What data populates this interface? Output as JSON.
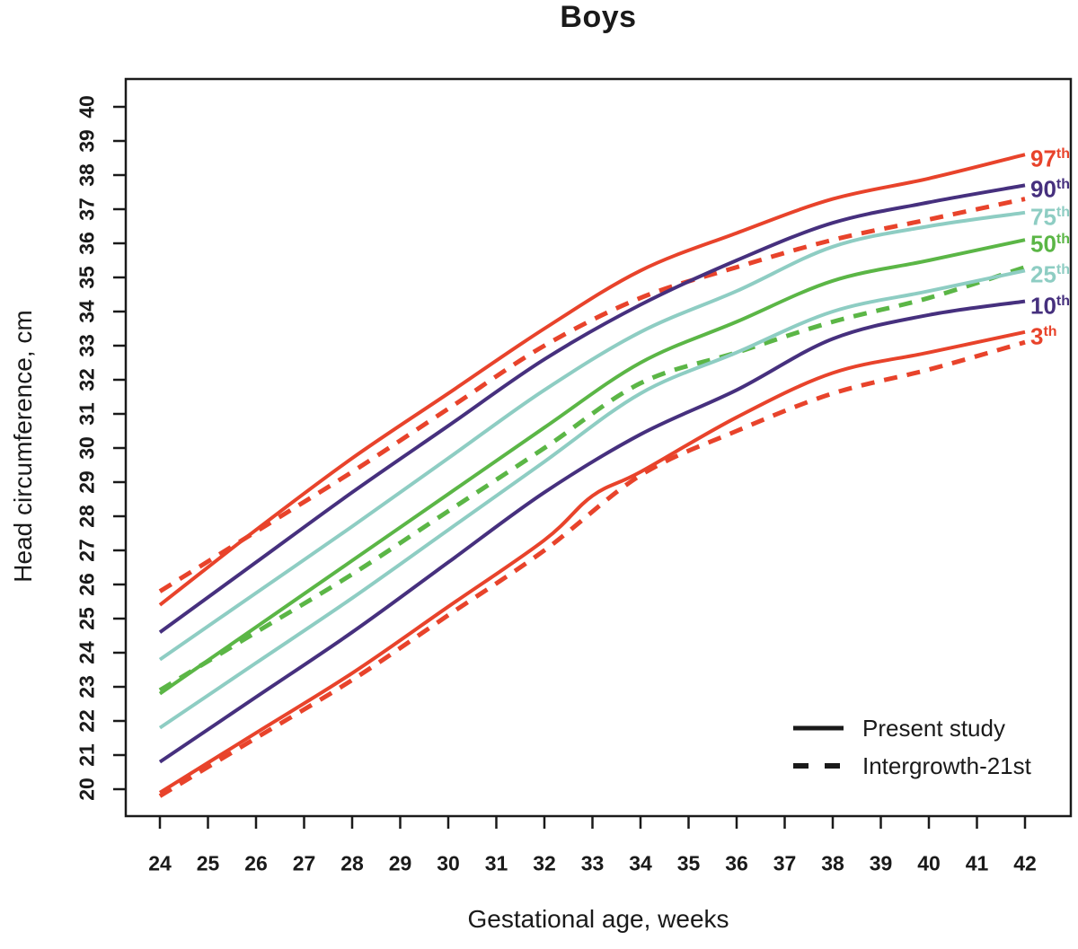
{
  "figure": {
    "title": "Boys"
  },
  "chart_data": {
    "type": "line",
    "title": "Boys",
    "xlabel": "Gestational age, weeks",
    "ylabel": "Head circumference, cm",
    "x_ticks": [
      24,
      25,
      26,
      27,
      28,
      29,
      30,
      31,
      32,
      33,
      34,
      35,
      36,
      37,
      38,
      39,
      40,
      41,
      42
    ],
    "y_ticks": [
      20,
      21,
      22,
      23,
      24,
      25,
      26,
      27,
      28,
      29,
      30,
      31,
      32,
      33,
      34,
      35,
      36,
      37,
      38,
      39,
      40
    ],
    "xlim": [
      23.3,
      43.0
    ],
    "ylim": [
      19.2,
      40.8
    ],
    "grid": false,
    "legend_position": "bottom-right-inside",
    "colors": {
      "red": "#e8432b",
      "purple": "#46307e",
      "teal": "#8ecdc3",
      "green": "#5bb646",
      "axis": "#1a1a1a"
    },
    "x": [
      24,
      26,
      28,
      30,
      32,
      34,
      36,
      38,
      40,
      42
    ],
    "series": [
      {
        "id": "97th-present",
        "percentile": "97th",
        "source": "Present study",
        "style": "solid",
        "color": "#e8432b",
        "values": [
          25.4,
          27.6,
          29.7,
          31.6,
          33.5,
          35.2,
          36.3,
          37.3,
          37.9,
          38.6
        ]
      },
      {
        "id": "97th-intergrowth",
        "percentile": "97th",
        "source": "Intergrowth-21st",
        "style": "dashed",
        "color": "#e8432b",
        "values": [
          25.8,
          27.55,
          29.3,
          31.15,
          33.0,
          34.4,
          35.3,
          36.1,
          36.7,
          37.3
        ]
      },
      {
        "id": "90th-present",
        "percentile": "90th",
        "source": "Present study",
        "style": "solid",
        "color": "#46307e",
        "values": [
          24.6,
          26.65,
          28.7,
          30.65,
          32.6,
          34.2,
          35.5,
          36.6,
          37.2,
          37.7
        ]
      },
      {
        "id": "75th-present",
        "percentile": "75th",
        "source": "Present study",
        "style": "solid",
        "color": "#8ecdc3",
        "values": [
          23.8,
          25.75,
          27.7,
          29.7,
          31.7,
          33.4,
          34.6,
          35.9,
          36.5,
          36.9
        ]
      },
      {
        "id": "50th-present",
        "percentile": "50th",
        "source": "Present study",
        "style": "solid",
        "color": "#5bb646",
        "values": [
          22.8,
          24.75,
          26.7,
          28.65,
          30.6,
          32.5,
          33.7,
          34.9,
          35.5,
          36.1
        ]
      },
      {
        "id": "50th-intergrowth",
        "percentile": "50th",
        "source": "Intergrowth-21st",
        "style": "dashed",
        "color": "#5bb646",
        "values": [
          22.9,
          24.6,
          26.3,
          28.15,
          30.0,
          31.9,
          32.8,
          33.7,
          34.4,
          35.3
        ]
      },
      {
        "id": "25th-present",
        "percentile": "25th",
        "source": "Present study",
        "style": "solid",
        "color": "#8ecdc3",
        "values": [
          21.8,
          23.7,
          25.6,
          27.6,
          29.6,
          31.6,
          32.8,
          34.0,
          34.6,
          35.2
        ]
      },
      {
        "id": "10th-present",
        "percentile": "10th",
        "source": "Present study",
        "style": "solid",
        "color": "#46307e",
        "values": [
          20.8,
          22.7,
          24.6,
          26.65,
          28.7,
          30.4,
          31.7,
          33.2,
          33.9,
          34.3
        ]
      },
      {
        "id": "3rd-present",
        "percentile": "3th",
        "source": "Present study",
        "style": "solid",
        "color": "#e8432b",
        "x": [
          24,
          26,
          28,
          30,
          32,
          33,
          34,
          36,
          38,
          40,
          42
        ],
        "values": [
          19.9,
          21.65,
          23.4,
          25.35,
          27.3,
          28.6,
          29.3,
          30.9,
          32.2,
          32.8,
          33.4
        ]
      },
      {
        "id": "3rd-intergrowth",
        "percentile": "3th",
        "source": "Intergrowth-21st",
        "style": "dashed",
        "color": "#e8432b",
        "values": [
          19.8,
          21.5,
          23.2,
          25.1,
          27.0,
          29.2,
          30.5,
          31.6,
          32.3,
          33.1
        ]
      }
    ],
    "percentile_labels": [
      {
        "value": "97",
        "sup": "th",
        "color": "#e8432b",
        "y": 38.6
      },
      {
        "value": "90",
        "sup": "th",
        "color": "#46307e",
        "y": 37.7
      },
      {
        "value": "75",
        "sup": "th",
        "color": "#8ecdc3",
        "y": 36.9
      },
      {
        "value": "50",
        "sup": "th",
        "color": "#5bb646",
        "y": 36.1
      },
      {
        "value": "25",
        "sup": "th",
        "color": "#8ecdc3",
        "y": 35.2
      },
      {
        "value": "10",
        "sup": "th",
        "color": "#46307e",
        "y": 34.3
      },
      {
        "value": "3",
        "sup": "th",
        "color": "#e8432b",
        "y": 33.4
      }
    ],
    "legend": [
      {
        "label": "Present study",
        "style": "solid"
      },
      {
        "label": "Intergrowth-21st",
        "style": "dashed"
      }
    ]
  }
}
